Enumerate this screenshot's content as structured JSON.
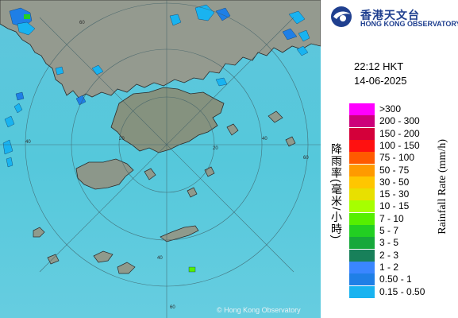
{
  "map": {
    "copyright": "© Hong Kong Observatory",
    "range_rings": [
      "60",
      "60",
      "40",
      "40",
      "20",
      "20",
      "40",
      "60"
    ],
    "colors": {
      "sea": "#54c3d9",
      "land": "#8f9a8c",
      "rain_light": "#19b3f0",
      "rain_mid": "#1f7fe6"
    }
  },
  "header": {
    "logo_zh": "香港天文台",
    "logo_en": "HONG KONG OBSERVATORY",
    "logo_icon": "hko-logo-icon"
  },
  "timestamp": {
    "time": "22:12 HKT",
    "date": "14-06-2025"
  },
  "legend": {
    "title_zh": "降雨率(毫米/小時)",
    "title_en": "Rainfall Rate (mm/h)",
    "items": [
      {
        "label": ">300",
        "color": "#ff00ff"
      },
      {
        "label": "200 - 300",
        "color": "#cc007a"
      },
      {
        "label": "150 - 200",
        "color": "#d4003a"
      },
      {
        "label": "100 - 150",
        "color": "#ff1010"
      },
      {
        "label": "75 - 100",
        "color": "#ff5a00"
      },
      {
        "label": "50 - 75",
        "color": "#ff9a00"
      },
      {
        "label": "30 - 50",
        "color": "#ffc600"
      },
      {
        "label": "15 - 30",
        "color": "#e8e000"
      },
      {
        "label": "10 - 15",
        "color": "#a6ff00"
      },
      {
        "label": "7 - 10",
        "color": "#55ef00"
      },
      {
        "label": "5 - 7",
        "color": "#22cf22"
      },
      {
        "label": "3 - 5",
        "color": "#16a83a"
      },
      {
        "label": "2 - 3",
        "color": "#18805a"
      },
      {
        "label": "1 - 2",
        "color": "#3a86ff"
      },
      {
        "label": "0.50 - 1",
        "color": "#1f7fe6"
      },
      {
        "label": "0.15 - 0.50",
        "color": "#19b3f0"
      }
    ]
  }
}
